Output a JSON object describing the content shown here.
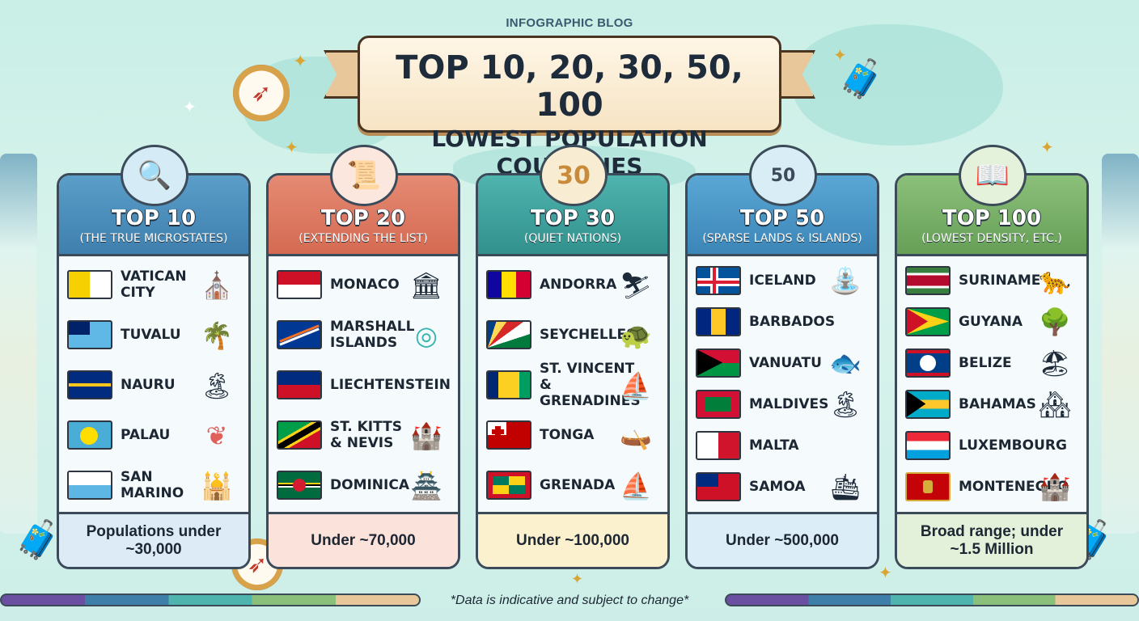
{
  "header": {
    "eyebrow": "INFOGRAPHIC BLOG",
    "title": "TOP 10, 20, 30, 50, 100",
    "subtitle": "LOWEST POPULATION COUNTRIES"
  },
  "cards": [
    {
      "title": "TOP 10",
      "subtitle": "(THE TRUE MICROSTATES)",
      "icon": "globe-magnifier-icon",
      "countries": [
        {
          "name": "VATICAN CITY",
          "flag": "vatican-flag",
          "icon": "pope-icon"
        },
        {
          "name": "TUVALU",
          "flag": "tuvalu-flag",
          "icon": "palm-island-icon"
        },
        {
          "name": "NAURU",
          "flag": "nauru-flag",
          "icon": "coral-island-icon"
        },
        {
          "name": "PALAU",
          "flag": "palau-flag",
          "icon": "coral-icon"
        },
        {
          "name": "SAN MARINO",
          "flag": "san-marino-flag",
          "icon": "basilica-icon"
        }
      ],
      "footer": "Populations under ~30,000"
    },
    {
      "title": "TOP 20",
      "subtitle": "(EXTENDING THE LIST)",
      "icon": "scroll-icon",
      "countries": [
        {
          "name": "MONACO",
          "flag": "monaco-flag",
          "icon": "casino-icon"
        },
        {
          "name": "MARSHALL ISLANDS",
          "flag": "marshall-islands-flag",
          "icon": "atoll-icon"
        },
        {
          "name": "LIECHTENSTEIN",
          "flag": "liechtenstein-flag",
          "icon": ""
        },
        {
          "name": "ST. KITTS & NEVIS",
          "flag": "st-kitts-flag",
          "icon": "fortress-icon"
        },
        {
          "name": "DOMINICA",
          "flag": "dominica-flag",
          "icon": "castle-icon"
        }
      ],
      "footer": "Under ~70,000"
    },
    {
      "title": "TOP 30",
      "subtitle": "(QUIET NATIONS)",
      "icon": "number-30-icon",
      "icon_text": "30",
      "countries": [
        {
          "name": "ANDORRA",
          "flag": "andorra-flag",
          "icon": "skier-icon"
        },
        {
          "name": "SEYCHELLES",
          "flag": "seychelles-flag",
          "icon": "tortoise-icon"
        },
        {
          "name": "ST. VINCENT & GRENADINES",
          "flag": "st-vincent-flag",
          "icon": "sailboat-icon"
        },
        {
          "name": "TONGA",
          "flag": "tonga-flag",
          "icon": "canoe-icon"
        },
        {
          "name": "GRENADA",
          "flag": "grenada-flag",
          "icon": "sailboat-icon"
        }
      ],
      "footer": "Under ~100,000"
    },
    {
      "title": "TOP 50",
      "subtitle": "(SPARSE LANDS & ISLANDS)",
      "icon": "number-50-icon",
      "icon_text": "50",
      "countries": [
        {
          "name": "ICELAND",
          "flag": "iceland-flag",
          "icon": "geyser-icon"
        },
        {
          "name": "BARBADOS",
          "flag": "barbados-flag",
          "icon": ""
        },
        {
          "name": "VANUATU",
          "flag": "vanuatu-flag",
          "icon": "fish-icon"
        },
        {
          "name": "MALDIVES",
          "flag": "maldives-flag",
          "icon": "island-icon"
        },
        {
          "name": "MALTA",
          "flag": "malta-flag",
          "icon": ""
        },
        {
          "name": "SAMOA",
          "flag": "samoa-flag",
          "icon": "ferry-icon"
        }
      ],
      "footer": "Under ~500,000"
    },
    {
      "title": "TOP 100",
      "subtitle": "(LOWEST DENSITY, ETC.)",
      "icon": "book-icon",
      "countries": [
        {
          "name": "SURINAME",
          "flag": "suriname-flag",
          "icon": "jaguar-icon"
        },
        {
          "name": "GUYANA",
          "flag": "guyana-flag",
          "icon": "jungle-icon"
        },
        {
          "name": "BELIZE",
          "flag": "belize-flag",
          "icon": "beach-icon"
        },
        {
          "name": "BAHAMAS",
          "flag": "bahamas-flag",
          "icon": "houses-icon"
        },
        {
          "name": "LUXEMBOURG",
          "flag": "luxembourg-flag",
          "icon": ""
        },
        {
          "name": "MONTENEGRO",
          "flag": "montenegro-flag",
          "icon": "old-town-icon"
        }
      ],
      "footer": "Broad range; under ~1.5 Million"
    }
  ],
  "footnote": "*Data is indicative and subject to change*"
}
